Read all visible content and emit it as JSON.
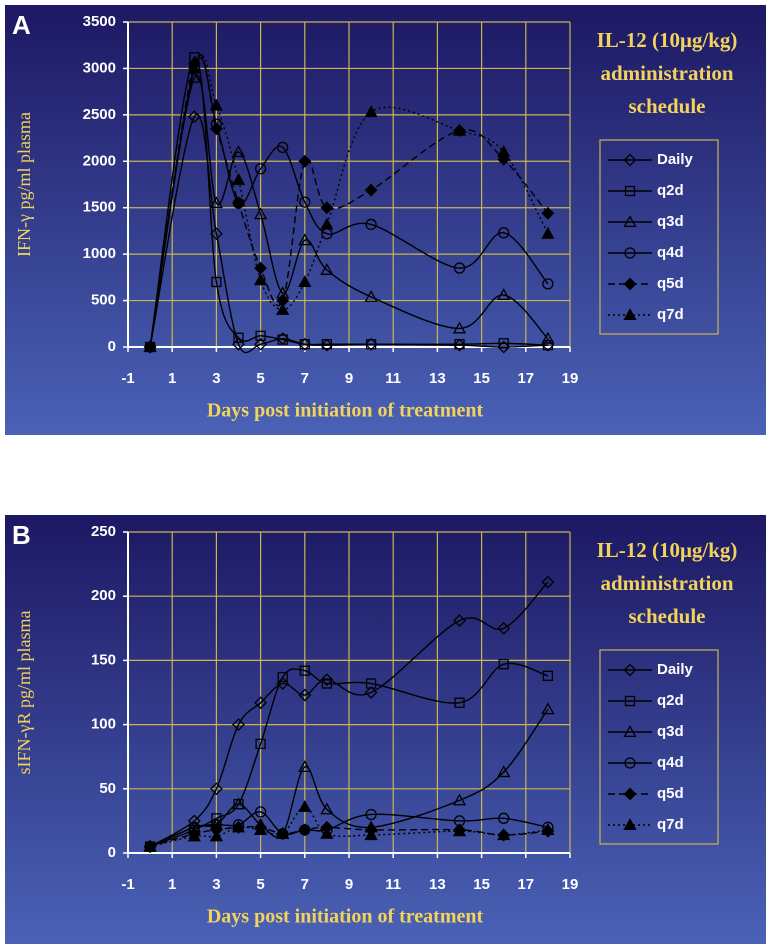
{
  "chart_data": [
    {
      "type": "line",
      "panel_label": "A",
      "y_label": "IFN-γ pg/ml plasma",
      "x_label": "Days post initiation of treatment",
      "legend_title": [
        "IL-12 (10μg/kg)",
        "administration",
        "schedule"
      ],
      "x": [
        0,
        2,
        3,
        4,
        5,
        6,
        7,
        8,
        10,
        14,
        16,
        18
      ],
      "xlim": [
        -1,
        19
      ],
      "xticks": [
        -1,
        1,
        3,
        5,
        7,
        9,
        11,
        13,
        15,
        17,
        19
      ],
      "ylim": [
        0,
        3500
      ],
      "yticks": [
        0,
        500,
        1000,
        1500,
        2000,
        2500,
        3000,
        3500
      ],
      "grid": true,
      "series": [
        {
          "name": "Daily",
          "color": "#000000",
          "marker": "diamond-open",
          "line_style": "solid",
          "values": [
            0,
            2480,
            1220,
            30,
            30,
            90,
            30,
            20,
            30,
            20,
            0,
            20
          ]
        },
        {
          "name": "q2d",
          "color": "#000000",
          "marker": "square-open",
          "line_style": "solid",
          "values": [
            0,
            3120,
            700,
            100,
            120,
            80,
            30,
            30,
            30,
            30,
            40,
            20
          ]
        },
        {
          "name": "q3d",
          "color": "#000000",
          "marker": "triangle-open",
          "line_style": "solid",
          "values": [
            0,
            2900,
            1550,
            2100,
            1430,
            580,
            1150,
            830,
            540,
            200,
            560,
            90
          ]
        },
        {
          "name": "q4d",
          "color": "#000000",
          "marker": "circle-open",
          "line_style": "solid",
          "values": [
            0,
            3000,
            2400,
            1550,
            1920,
            2150,
            1560,
            1220,
            1320,
            850,
            1230,
            680
          ]
        },
        {
          "name": "q5d",
          "color": "#000000",
          "marker": "diamond-filled",
          "line_style": "dashed",
          "values": [
            0,
            3050,
            2350,
            1550,
            850,
            500,
            2000,
            1500,
            1690,
            2330,
            2020,
            1440
          ]
        },
        {
          "name": "q7d",
          "color": "#000000",
          "marker": "triangle-filled",
          "line_style": "dotted",
          "values": [
            0,
            3000,
            2600,
            1800,
            720,
            400,
            700,
            1320,
            2530,
            2330,
            2100,
            1220
          ]
        }
      ]
    },
    {
      "type": "line",
      "panel_label": "B",
      "y_label": "sIFN-γR pg/ml plasma",
      "x_label": "Days post initiation of treatment",
      "legend_title": [
        "IL-12 (10μg/kg)",
        "administration",
        "schedule"
      ],
      "x": [
        0,
        2,
        3,
        4,
        5,
        6,
        7,
        8,
        10,
        14,
        16,
        18
      ],
      "xlim": [
        -1,
        19
      ],
      "xticks": [
        -1,
        1,
        3,
        5,
        7,
        9,
        11,
        13,
        15,
        17,
        19
      ],
      "ylim": [
        0,
        250
      ],
      "yticks": [
        0,
        50,
        100,
        150,
        200,
        250
      ],
      "grid": true,
      "series": [
        {
          "name": "Daily",
          "color": "#000000",
          "marker": "diamond-open",
          "line_style": "solid",
          "values": [
            5,
            25,
            50,
            100,
            117,
            132,
            123,
            135,
            125,
            181,
            175,
            211
          ]
        },
        {
          "name": "q2d",
          "color": "#000000",
          "marker": "square-open",
          "line_style": "solid",
          "values": [
            5,
            18,
            27,
            38,
            85,
            137,
            142,
            132,
            132,
            117,
            147,
            138
          ]
        },
        {
          "name": "q3d",
          "color": "#000000",
          "marker": "triangle-open",
          "line_style": "solid",
          "values": [
            5,
            20,
            22,
            38,
            22,
            15,
            67,
            34,
            20,
            41,
            63,
            112
          ]
        },
        {
          "name": "q4d",
          "color": "#000000",
          "marker": "circle-open",
          "line_style": "solid",
          "values": [
            5,
            20,
            22,
            22,
            32,
            15,
            18,
            18,
            30,
            25,
            27,
            20
          ]
        },
        {
          "name": "q5d",
          "color": "#000000",
          "marker": "diamond-filled",
          "line_style": "dashed",
          "values": [
            5,
            15,
            18,
            20,
            20,
            15,
            18,
            20,
            18,
            18,
            14,
            17
          ]
        },
        {
          "name": "q7d",
          "color": "#000000",
          "marker": "triangle-filled",
          "line_style": "dotted",
          "values": [
            5,
            13,
            13,
            20,
            18,
            15,
            36,
            15,
            14,
            17,
            14,
            18
          ]
        }
      ]
    }
  ]
}
